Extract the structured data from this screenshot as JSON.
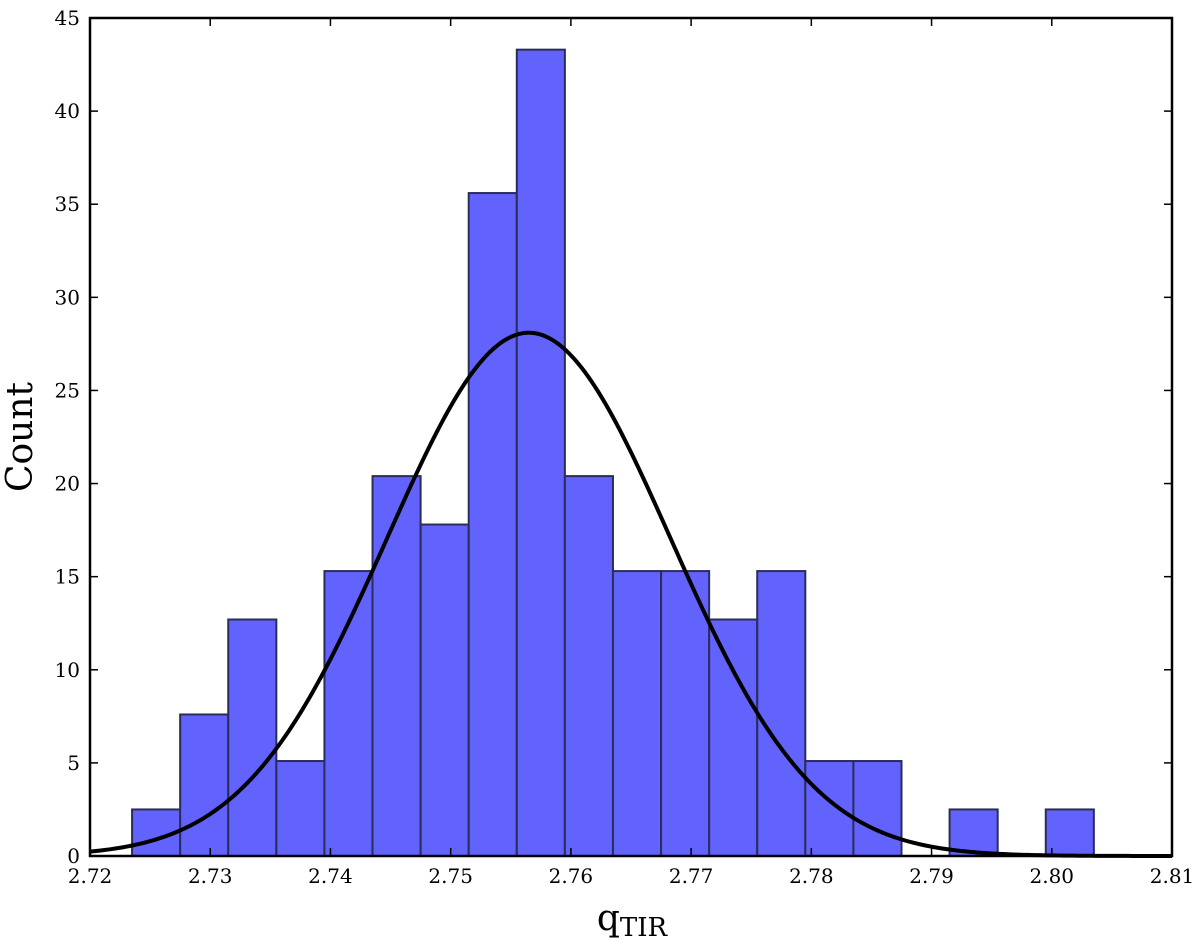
{
  "chart_data": {
    "type": "bar",
    "subtype": "histogram",
    "title": "",
    "xlabel": "q",
    "xlabel_subscript": "TIR",
    "ylabel": "Count",
    "xlim": [
      2.72,
      2.81
    ],
    "ylim": [
      0,
      45
    ],
    "xticks": [
      "2.72",
      "2.73",
      "2.74",
      "2.75",
      "2.76",
      "2.77",
      "2.78",
      "2.79",
      "2.80",
      "2.81"
    ],
    "yticks": [
      "0",
      "5",
      "10",
      "15",
      "20",
      "25",
      "30",
      "35",
      "40",
      "45"
    ],
    "bins": [
      {
        "x0": 2.7235,
        "x1": 2.7275,
        "count": 2.5
      },
      {
        "x0": 2.7275,
        "x1": 2.7315,
        "count": 7.6
      },
      {
        "x0": 2.7315,
        "x1": 2.7355,
        "count": 12.7
      },
      {
        "x0": 2.7355,
        "x1": 2.7395,
        "count": 5.1
      },
      {
        "x0": 2.7395,
        "x1": 2.7435,
        "count": 15.3
      },
      {
        "x0": 2.7435,
        "x1": 2.7475,
        "count": 20.4
      },
      {
        "x0": 2.7475,
        "x1": 2.7515,
        "count": 17.8
      },
      {
        "x0": 2.7515,
        "x1": 2.7555,
        "count": 35.6
      },
      {
        "x0": 2.7555,
        "x1": 2.7595,
        "count": 43.3
      },
      {
        "x0": 2.7595,
        "x1": 2.7635,
        "count": 20.4
      },
      {
        "x0": 2.7635,
        "x1": 2.7675,
        "count": 15.3
      },
      {
        "x0": 2.7675,
        "x1": 2.7715,
        "count": 15.3
      },
      {
        "x0": 2.7715,
        "x1": 2.7755,
        "count": 12.7
      },
      {
        "x0": 2.7755,
        "x1": 2.7795,
        "count": 15.3
      },
      {
        "x0": 2.7795,
        "x1": 2.7835,
        "count": 5.1
      },
      {
        "x0": 2.7835,
        "x1": 2.7875,
        "count": 5.1
      },
      {
        "x0": 2.7915,
        "x1": 2.7955,
        "count": 2.5
      },
      {
        "x0": 2.7995,
        "x1": 2.8035,
        "count": 2.5
      }
    ],
    "fit_curve": {
      "type": "gaussian",
      "mean": 2.7565,
      "sigma": 0.0118,
      "amplitude": 28.1
    },
    "colors": {
      "bar_fill": "#6262fd",
      "bar_edge": "#2c2c5a",
      "curve": "#000000"
    },
    "grid": false,
    "legend": "none"
  }
}
